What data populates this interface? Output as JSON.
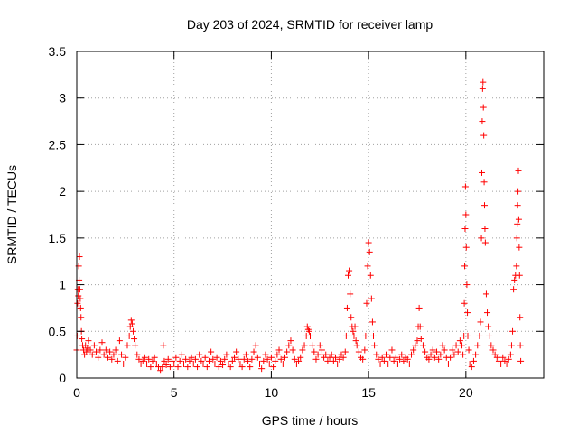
{
  "chart_data": {
    "type": "scatter",
    "title": "Day 203 of 2024, SRMTID for receiver lamp",
    "xlabel": "GPS time / hours",
    "ylabel": "SRMTID / TECUs",
    "xlim": [
      0,
      24
    ],
    "ylim": [
      0,
      3.5
    ],
    "xticks": [
      0,
      5,
      10,
      15,
      20
    ],
    "xtick_labels": [
      "0",
      "5",
      "10",
      "15",
      "20"
    ],
    "yticks": [
      0,
      0.5,
      1,
      1.5,
      2,
      2.5,
      3,
      3.5
    ],
    "ytick_labels": [
      "0",
      "0.5",
      "1",
      "1.5",
      "2",
      "2.5",
      "3",
      "3.5"
    ],
    "grid": true,
    "marker": "plus",
    "series": [
      {
        "name": "SRMTID",
        "color": "#ff0000",
        "points": [
          [
            0.0,
            0.3
          ],
          [
            0.02,
            0.45
          ],
          [
            0.04,
            0.8
          ],
          [
            0.06,
            0.95
          ],
          [
            0.08,
            0.88
          ],
          [
            0.1,
            1.2
          ],
          [
            0.12,
            1.05
          ],
          [
            0.14,
            1.3
          ],
          [
            0.16,
            0.95
          ],
          [
            0.18,
            0.85
          ],
          [
            0.2,
            0.75
          ],
          [
            0.22,
            0.65
          ],
          [
            0.24,
            0.5
          ],
          [
            0.26,
            0.42
          ],
          [
            0.3,
            0.35
          ],
          [
            0.35,
            0.3
          ],
          [
            0.4,
            0.25
          ],
          [
            0.45,
            0.35
          ],
          [
            0.5,
            0.28
          ],
          [
            0.55,
            0.32
          ],
          [
            0.6,
            0.4
          ],
          [
            0.7,
            0.3
          ],
          [
            0.8,
            0.25
          ],
          [
            0.9,
            0.35
          ],
          [
            1.0,
            0.28
          ],
          [
            1.1,
            0.22
          ],
          [
            1.2,
            0.3
          ],
          [
            1.3,
            0.38
          ],
          [
            1.4,
            0.25
          ],
          [
            1.5,
            0.3
          ],
          [
            1.6,
            0.22
          ],
          [
            1.7,
            0.28
          ],
          [
            1.8,
            0.2
          ],
          [
            1.9,
            0.25
          ],
          [
            2.0,
            0.3
          ],
          [
            2.1,
            0.18
          ],
          [
            2.2,
            0.4
          ],
          [
            2.3,
            0.25
          ],
          [
            2.4,
            0.15
          ],
          [
            2.5,
            0.22
          ],
          [
            2.6,
            0.35
          ],
          [
            2.7,
            0.45
          ],
          [
            2.75,
            0.55
          ],
          [
            2.8,
            0.62
          ],
          [
            2.85,
            0.58
          ],
          [
            2.9,
            0.5
          ],
          [
            2.95,
            0.42
          ],
          [
            3.0,
            0.35
          ],
          [
            3.1,
            0.25
          ],
          [
            3.2,
            0.2
          ],
          [
            3.3,
            0.15
          ],
          [
            3.4,
            0.18
          ],
          [
            3.5,
            0.22
          ],
          [
            3.6,
            0.15
          ],
          [
            3.7,
            0.2
          ],
          [
            3.8,
            0.12
          ],
          [
            3.9,
            0.18
          ],
          [
            4.0,
            0.22
          ],
          [
            4.1,
            0.15
          ],
          [
            4.2,
            0.12
          ],
          [
            4.3,
            0.08
          ],
          [
            4.4,
            0.12
          ],
          [
            4.45,
            0.35
          ],
          [
            4.5,
            0.18
          ],
          [
            4.6,
            0.14
          ],
          [
            4.7,
            0.2
          ],
          [
            4.8,
            0.12
          ],
          [
            4.9,
            0.18
          ],
          [
            5.0,
            0.15
          ],
          [
            5.1,
            0.22
          ],
          [
            5.2,
            0.12
          ],
          [
            5.3,
            0.18
          ],
          [
            5.4,
            0.25
          ],
          [
            5.5,
            0.15
          ],
          [
            5.6,
            0.2
          ],
          [
            5.7,
            0.12
          ],
          [
            5.8,
            0.18
          ],
          [
            5.9,
            0.22
          ],
          [
            6.0,
            0.15
          ],
          [
            6.1,
            0.2
          ],
          [
            6.2,
            0.12
          ],
          [
            6.3,
            0.25
          ],
          [
            6.4,
            0.18
          ],
          [
            6.5,
            0.15
          ],
          [
            6.6,
            0.22
          ],
          [
            6.7,
            0.12
          ],
          [
            6.8,
            0.18
          ],
          [
            6.9,
            0.28
          ],
          [
            7.0,
            0.2
          ],
          [
            7.1,
            0.15
          ],
          [
            7.2,
            0.22
          ],
          [
            7.3,
            0.12
          ],
          [
            7.4,
            0.18
          ],
          [
            7.5,
            0.14
          ],
          [
            7.6,
            0.2
          ],
          [
            7.7,
            0.25
          ],
          [
            7.8,
            0.15
          ],
          [
            7.9,
            0.12
          ],
          [
            8.0,
            0.18
          ],
          [
            8.1,
            0.22
          ],
          [
            8.2,
            0.28
          ],
          [
            8.3,
            0.2
          ],
          [
            8.4,
            0.15
          ],
          [
            8.5,
            0.12
          ],
          [
            8.6,
            0.2
          ],
          [
            8.7,
            0.25
          ],
          [
            8.8,
            0.18
          ],
          [
            8.9,
            0.12
          ],
          [
            9.0,
            0.2
          ],
          [
            9.1,
            0.28
          ],
          [
            9.2,
            0.35
          ],
          [
            9.3,
            0.22
          ],
          [
            9.4,
            0.15
          ],
          [
            9.5,
            0.1
          ],
          [
            9.6,
            0.18
          ],
          [
            9.7,
            0.25
          ],
          [
            9.8,
            0.2
          ],
          [
            9.9,
            0.15
          ],
          [
            10.0,
            0.22
          ],
          [
            10.1,
            0.12
          ],
          [
            10.2,
            0.18
          ],
          [
            10.3,
            0.25
          ],
          [
            10.4,
            0.3
          ],
          [
            10.5,
            0.2
          ],
          [
            10.6,
            0.15
          ],
          [
            10.7,
            0.22
          ],
          [
            10.8,
            0.28
          ],
          [
            10.9,
            0.35
          ],
          [
            11.0,
            0.4
          ],
          [
            11.1,
            0.3
          ],
          [
            11.2,
            0.2
          ],
          [
            11.3,
            0.15
          ],
          [
            11.4,
            0.18
          ],
          [
            11.5,
            0.22
          ],
          [
            11.6,
            0.3
          ],
          [
            11.7,
            0.35
          ],
          [
            11.8,
            0.45
          ],
          [
            11.85,
            0.55
          ],
          [
            11.9,
            0.52
          ],
          [
            11.95,
            0.5
          ],
          [
            12.0,
            0.45
          ],
          [
            12.1,
            0.35
          ],
          [
            12.2,
            0.28
          ],
          [
            12.3,
            0.2
          ],
          [
            12.4,
            0.25
          ],
          [
            12.5,
            0.35
          ],
          [
            12.6,
            0.3
          ],
          [
            12.7,
            0.22
          ],
          [
            12.8,
            0.25
          ],
          [
            12.9,
            0.18
          ],
          [
            13.0,
            0.22
          ],
          [
            13.1,
            0.25
          ],
          [
            13.2,
            0.18
          ],
          [
            13.3,
            0.22
          ],
          [
            13.4,
            0.15
          ],
          [
            13.5,
            0.2
          ],
          [
            13.6,
            0.25
          ],
          [
            13.7,
            0.22
          ],
          [
            13.8,
            0.28
          ],
          [
            13.85,
            0.45
          ],
          [
            13.9,
            0.75
          ],
          [
            13.95,
            1.1
          ],
          [
            14.0,
            1.15
          ],
          [
            14.05,
            0.9
          ],
          [
            14.1,
            0.65
          ],
          [
            14.15,
            0.55
          ],
          [
            14.2,
            0.5
          ],
          [
            14.25,
            0.45
          ],
          [
            14.3,
            0.55
          ],
          [
            14.35,
            0.4
          ],
          [
            14.4,
            0.35
          ],
          [
            14.5,
            0.28
          ],
          [
            14.6,
            0.22
          ],
          [
            14.7,
            0.2
          ],
          [
            14.8,
            0.3
          ],
          [
            14.85,
            0.45
          ],
          [
            14.9,
            0.8
          ],
          [
            14.95,
            1.2
          ],
          [
            15.0,
            1.45
          ],
          [
            15.05,
            1.35
          ],
          [
            15.1,
            1.1
          ],
          [
            15.15,
            0.85
          ],
          [
            15.2,
            0.6
          ],
          [
            15.25,
            0.45
          ],
          [
            15.3,
            0.35
          ],
          [
            15.4,
            0.25
          ],
          [
            15.5,
            0.2
          ],
          [
            15.6,
            0.15
          ],
          [
            15.7,
            0.22
          ],
          [
            15.8,
            0.18
          ],
          [
            15.9,
            0.25
          ],
          [
            16.0,
            0.15
          ],
          [
            16.1,
            0.22
          ],
          [
            16.2,
            0.3
          ],
          [
            16.3,
            0.18
          ],
          [
            16.4,
            0.22
          ],
          [
            16.5,
            0.15
          ],
          [
            16.6,
            0.2
          ],
          [
            16.7,
            0.25
          ],
          [
            16.8,
            0.18
          ],
          [
            16.9,
            0.22
          ],
          [
            17.0,
            0.2
          ],
          [
            17.1,
            0.15
          ],
          [
            17.2,
            0.25
          ],
          [
            17.3,
            0.3
          ],
          [
            17.4,
            0.35
          ],
          [
            17.5,
            0.4
          ],
          [
            17.55,
            0.55
          ],
          [
            17.6,
            0.75
          ],
          [
            17.65,
            0.55
          ],
          [
            17.7,
            0.42
          ],
          [
            17.8,
            0.35
          ],
          [
            17.9,
            0.28
          ],
          [
            18.0,
            0.22
          ],
          [
            18.1,
            0.2
          ],
          [
            18.2,
            0.25
          ],
          [
            18.3,
            0.3
          ],
          [
            18.4,
            0.22
          ],
          [
            18.5,
            0.28
          ],
          [
            18.6,
            0.2
          ],
          [
            18.7,
            0.25
          ],
          [
            18.8,
            0.35
          ],
          [
            18.9,
            0.3
          ],
          [
            19.0,
            0.22
          ],
          [
            19.1,
            0.15
          ],
          [
            19.2,
            0.22
          ],
          [
            19.3,
            0.3
          ],
          [
            19.4,
            0.25
          ],
          [
            19.5,
            0.35
          ],
          [
            19.6,
            0.28
          ],
          [
            19.7,
            0.4
          ],
          [
            19.8,
            0.35
          ],
          [
            19.85,
            0.25
          ],
          [
            19.9,
            0.45
          ],
          [
            19.92,
            0.8
          ],
          [
            19.94,
            1.2
          ],
          [
            19.96,
            1.6
          ],
          [
            19.98,
            2.05
          ],
          [
            20.0,
            1.75
          ],
          [
            20.02,
            1.4
          ],
          [
            20.05,
            1.0
          ],
          [
            20.08,
            0.7
          ],
          [
            20.1,
            0.45
          ],
          [
            20.15,
            0.3
          ],
          [
            20.2,
            0.15
          ],
          [
            20.3,
            0.12
          ],
          [
            20.4,
            0.18
          ],
          [
            20.5,
            0.25
          ],
          [
            20.6,
            0.35
          ],
          [
            20.7,
            0.45
          ],
          [
            20.75,
            0.6
          ],
          [
            20.8,
            1.5
          ],
          [
            20.82,
            2.2
          ],
          [
            20.84,
            2.75
          ],
          [
            20.86,
            3.1
          ],
          [
            20.88,
            3.17
          ],
          [
            20.9,
            2.9
          ],
          [
            20.92,
            2.6
          ],
          [
            20.94,
            2.1
          ],
          [
            20.96,
            1.85
          ],
          [
            20.98,
            1.6
          ],
          [
            21.0,
            1.45
          ],
          [
            21.05,
            0.9
          ],
          [
            21.1,
            0.7
          ],
          [
            21.15,
            0.55
          ],
          [
            21.2,
            0.45
          ],
          [
            21.3,
            0.35
          ],
          [
            21.4,
            0.3
          ],
          [
            21.5,
            0.25
          ],
          [
            21.6,
            0.22
          ],
          [
            21.7,
            0.18
          ],
          [
            21.8,
            0.15
          ],
          [
            21.9,
            0.22
          ],
          [
            22.0,
            0.18
          ],
          [
            22.1,
            0.15
          ],
          [
            22.2,
            0.2
          ],
          [
            22.3,
            0.25
          ],
          [
            22.35,
            0.35
          ],
          [
            22.4,
            0.5
          ],
          [
            22.45,
            0.95
          ],
          [
            22.5,
            1.05
          ],
          [
            22.55,
            1.1
          ],
          [
            22.6,
            1.2
          ],
          [
            22.62,
            1.5
          ],
          [
            22.64,
            1.65
          ],
          [
            22.66,
            1.85
          ],
          [
            22.68,
            2.0
          ],
          [
            22.7,
            2.22
          ],
          [
            22.72,
            1.7
          ],
          [
            22.74,
            1.4
          ],
          [
            22.76,
            1.1
          ],
          [
            22.78,
            0.65
          ],
          [
            22.8,
            0.35
          ],
          [
            22.82,
            0.18
          ]
        ]
      }
    ]
  }
}
